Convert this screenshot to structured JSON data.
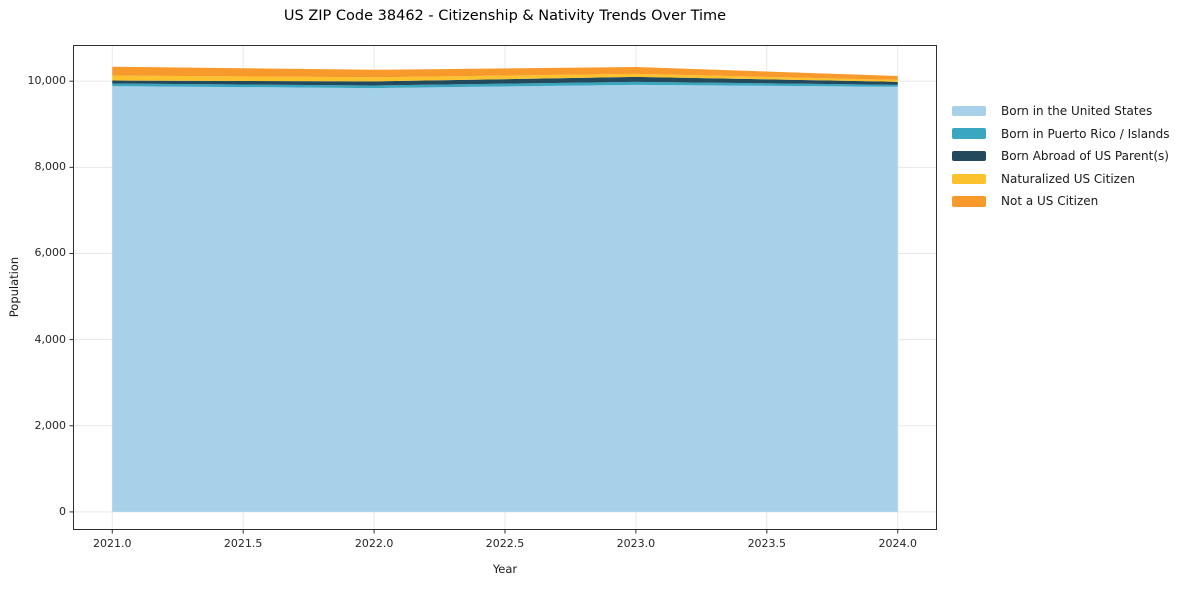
{
  "title": "US ZIP Code 38462 - Citizenship & Nativity Trends Over Time",
  "chart_data": {
    "type": "area",
    "stacked": true,
    "title": "US ZIP Code 38462 - Citizenship & Nativity Trends Over Time",
    "xlabel": "Year",
    "ylabel": "Population",
    "x": [
      2021,
      2022,
      2023,
      2024
    ],
    "series": [
      {
        "name": "Born in the United States",
        "color": "#a7d1e8",
        "values": [
          9885,
          9840,
          9915,
          9870
        ]
      },
      {
        "name": "Born in Puerto Rico / Islands",
        "color": "#3ba6c0",
        "values": [
          60,
          60,
          70,
          45
        ]
      },
      {
        "name": "Born Abroad of US Parent(s)",
        "color": "#234a5c",
        "values": [
          70,
          95,
          115,
          70
        ]
      },
      {
        "name": "Naturalized US Citizen",
        "color": "#fcc22d",
        "values": [
          115,
          95,
          70,
          45
        ]
      },
      {
        "name": "Not a US Citizen",
        "color": "#f8992b",
        "values": [
          205,
          175,
          160,
          90
        ]
      }
    ],
    "xlim": [
      2020.85,
      2024.15
    ],
    "ylim": [
      -420,
      10840
    ],
    "xticks": [
      2021.0,
      2021.5,
      2022.0,
      2022.5,
      2023.0,
      2023.5,
      2024.0
    ],
    "xtick_labels": [
      "2021.0",
      "2021.5",
      "2022.0",
      "2022.5",
      "2023.0",
      "2023.5",
      "2024.0"
    ],
    "yticks": [
      0,
      2000,
      4000,
      6000,
      8000,
      10000
    ],
    "ytick_labels": [
      "0",
      "2,000",
      "4,000",
      "6,000",
      "8,000",
      "10,000"
    ],
    "grid": true,
    "legend_position": "outside-right"
  },
  "colors": {
    "background": "#ffffff",
    "grid": "#e7e7e7",
    "axis_border": "#2e2e2e",
    "tick": "#2e2e2e",
    "text": "#1a1a1a"
  }
}
